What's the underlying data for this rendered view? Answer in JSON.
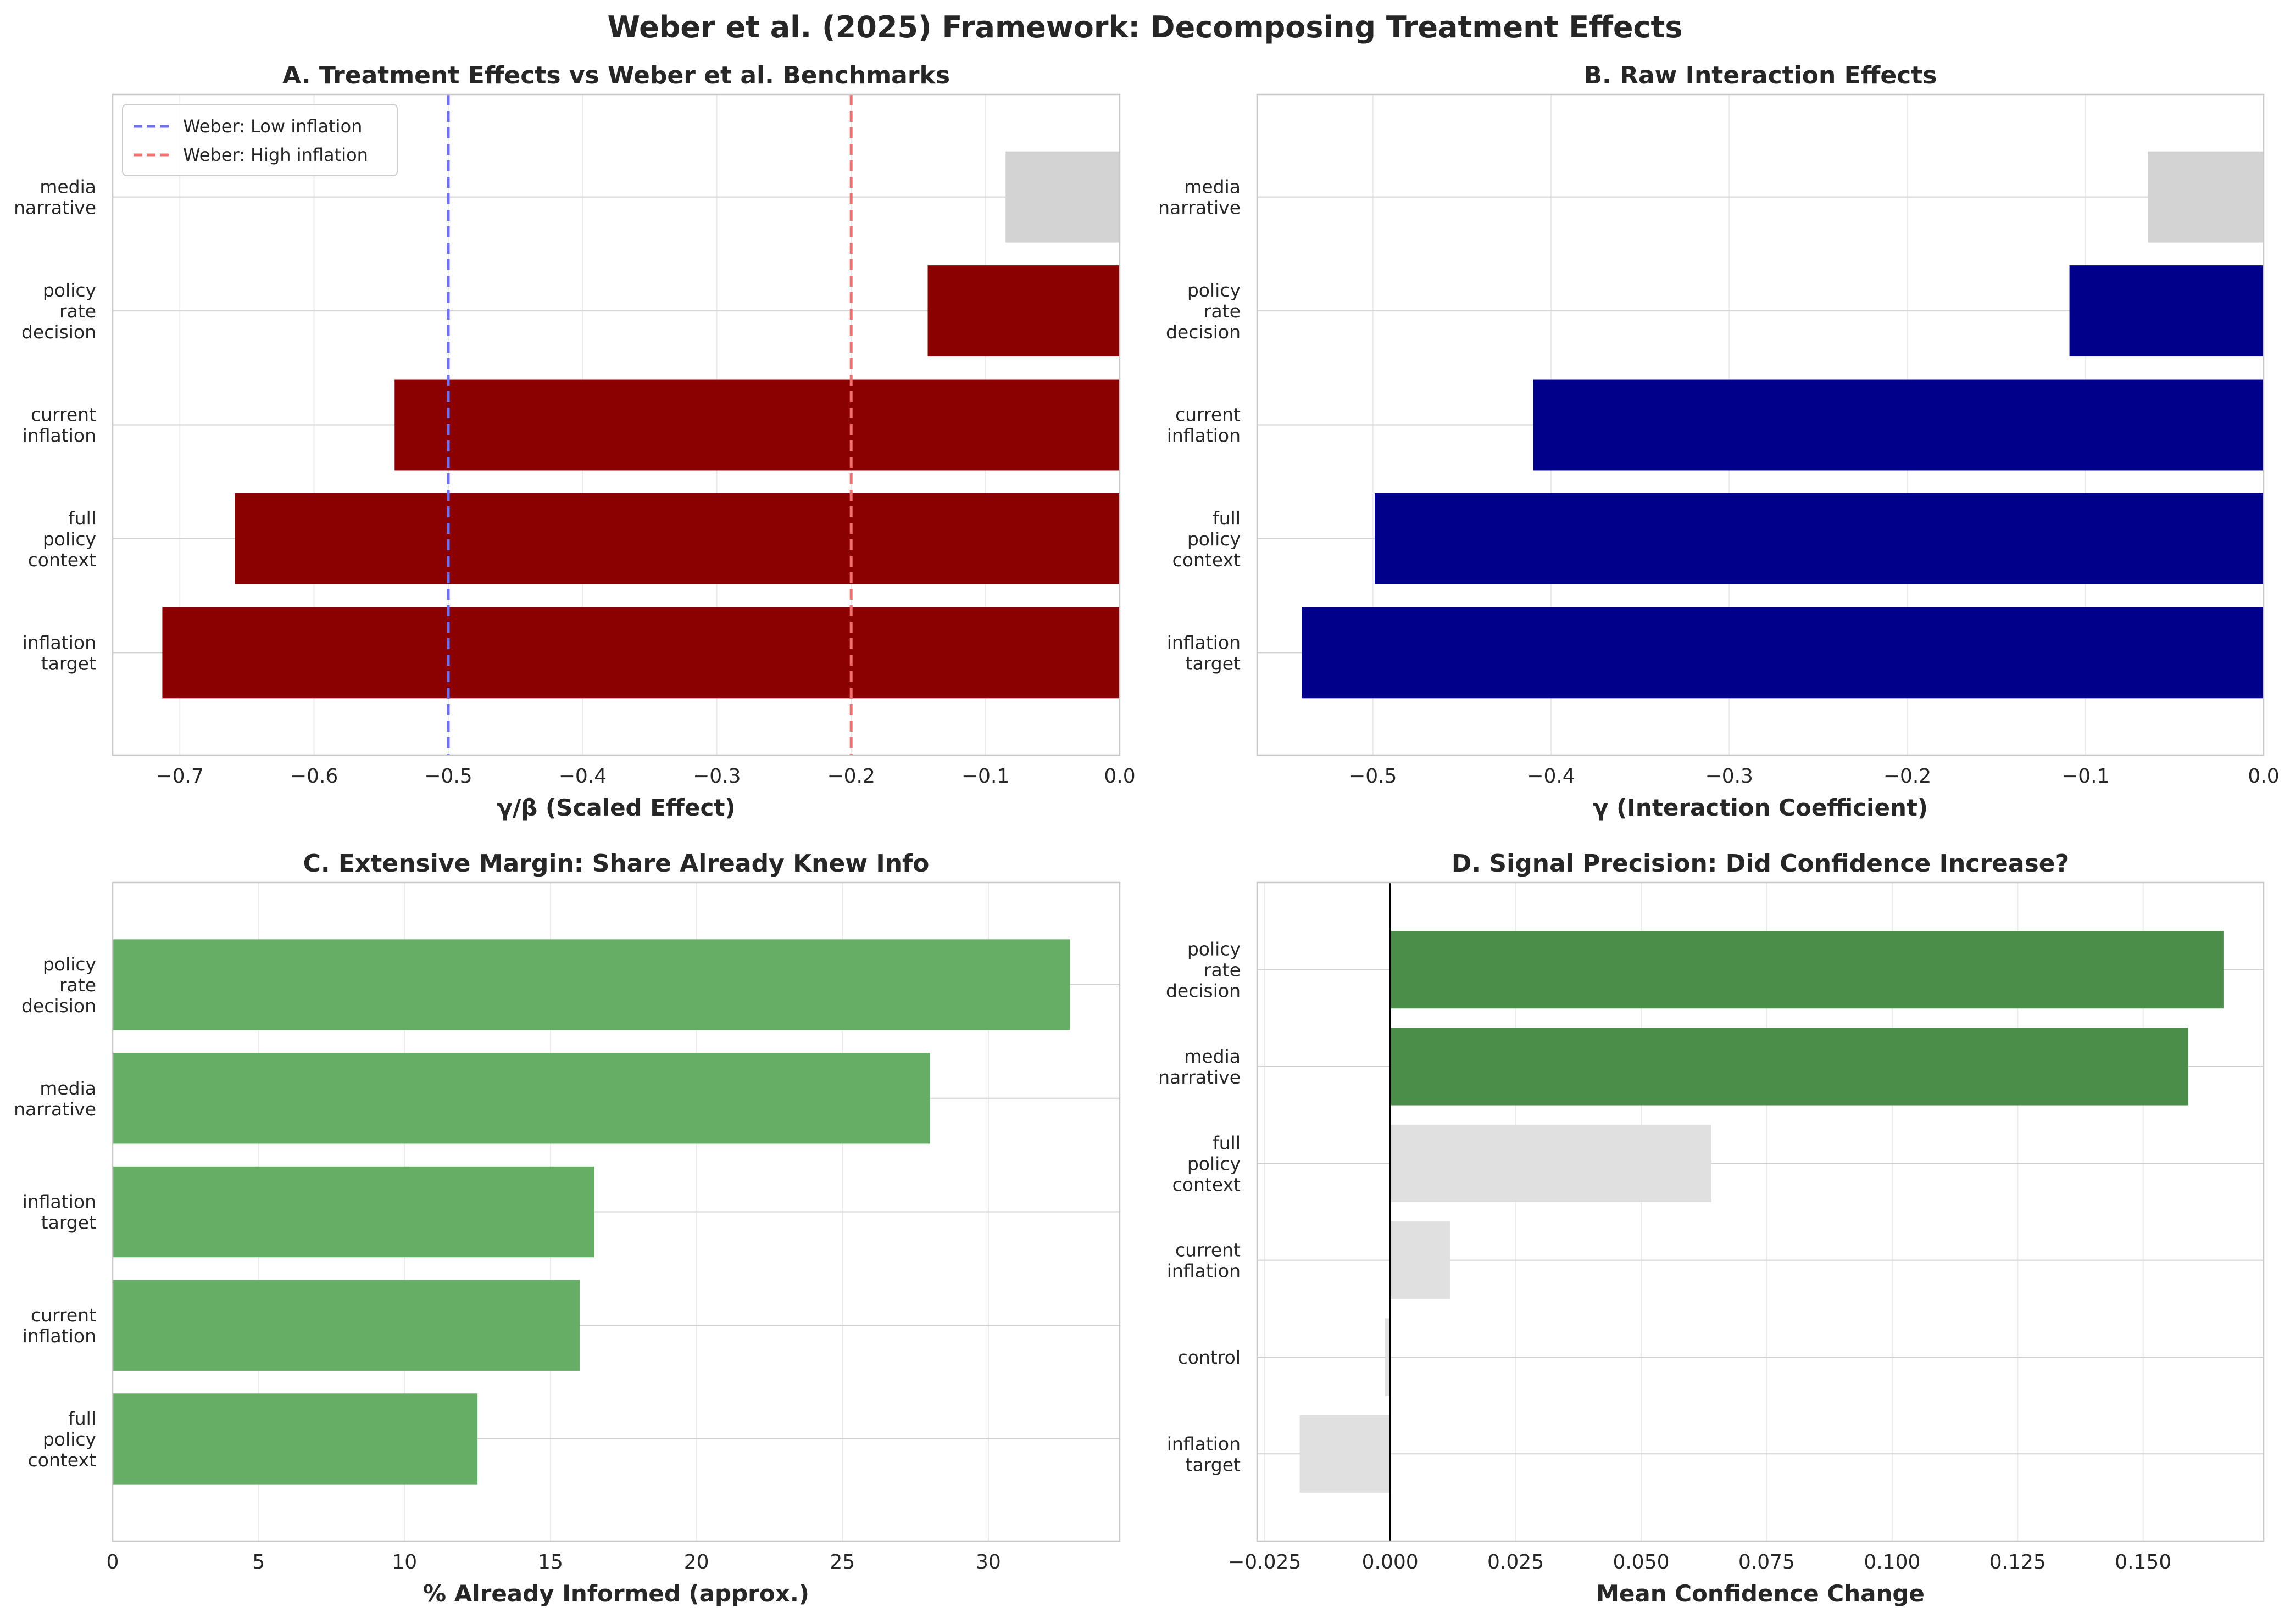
{
  "figure": {
    "title": "Weber et al. (2025) Framework: Decomposing Treatment Effects"
  },
  "chart_data": [
    {
      "id": "A",
      "type": "bar",
      "orientation": "horizontal",
      "title": "A. Treatment Effects vs Weber et al. Benchmarks",
      "xlabel": "γ/β (Scaled Effect)",
      "ylabel": "",
      "xlim": [
        -0.75,
        0.0
      ],
      "xticks": [
        -0.7,
        -0.6,
        -0.5,
        -0.4,
        -0.3,
        -0.2,
        -0.1,
        0.0
      ],
      "xtick_labels": [
        "−0.7",
        "−0.6",
        "−0.5",
        "−0.4",
        "−0.3",
        "−0.2",
        "−0.1",
        "0.0"
      ],
      "grid": true,
      "legend": "upper-left",
      "categories": [
        "inflation\ntarget",
        "full\npolicy\ncontext",
        "current\ninflation",
        "policy\nrate\ndecision",
        "media\nnarrative"
      ],
      "values": [
        -0.713,
        -0.659,
        -0.54,
        -0.143,
        -0.085
      ],
      "bar_colors": [
        "#8b0000",
        "#8b0000",
        "#8b0000",
        "#8b0000",
        "#d3d3d3"
      ],
      "reference_lines": [
        {
          "name": "Weber: Low inflation",
          "x": -0.5,
          "color": "#7070f0",
          "style": "dashed"
        },
        {
          "name": "Weber: High inflation",
          "x": -0.2,
          "color": "#f07070",
          "style": "dashed"
        }
      ]
    },
    {
      "id": "B",
      "type": "bar",
      "orientation": "horizontal",
      "title": "B. Raw Interaction Effects",
      "xlabel": "γ (Interaction Coefficient)",
      "ylabel": "",
      "xlim": [
        -0.565,
        0.0
      ],
      "xticks": [
        -0.5,
        -0.4,
        -0.3,
        -0.2,
        -0.1,
        0.0
      ],
      "xtick_labels": [
        "−0.5",
        "−0.4",
        "−0.3",
        "−0.2",
        "−0.1",
        "0.0"
      ],
      "grid": true,
      "categories": [
        "inflation\ntarget",
        "full\npolicy\ncontext",
        "current\ninflation",
        "policy\nrate\ndecision",
        "media\nnarrative"
      ],
      "values": [
        -0.54,
        -0.499,
        -0.41,
        -0.109,
        -0.065
      ],
      "bar_colors": [
        "#00008b",
        "#00008b",
        "#00008b",
        "#00008b",
        "#d3d3d3"
      ]
    },
    {
      "id": "C",
      "type": "bar",
      "orientation": "horizontal",
      "title": "C. Extensive Margin: Share Already Knew Info",
      "xlabel": "% Already Informed (approx.)",
      "ylabel": "",
      "xlim": [
        0,
        34.5
      ],
      "xticks": [
        0,
        5,
        10,
        15,
        20,
        25,
        30
      ],
      "xtick_labels": [
        "0",
        "5",
        "10",
        "15",
        "20",
        "25",
        "30"
      ],
      "grid": true,
      "categories": [
        "full\npolicy\ncontext",
        "current\ninflation",
        "inflation\ntarget",
        "media\nnarrative",
        "policy\nrate\ndecision"
      ],
      "values": [
        12.5,
        16.0,
        16.5,
        28.0,
        32.8
      ],
      "bar_colors": [
        "#66ae66",
        "#66ae66",
        "#66ae66",
        "#66ae66",
        "#66ae66"
      ]
    },
    {
      "id": "D",
      "type": "bar",
      "orientation": "horizontal",
      "title": "D. Signal Precision: Did Confidence Increase?",
      "xlabel": "Mean Confidence Change",
      "ylabel": "",
      "xlim": [
        -0.0265,
        0.174
      ],
      "xticks": [
        -0.025,
        0.0,
        0.025,
        0.05,
        0.075,
        0.1,
        0.125,
        0.15
      ],
      "xtick_labels": [
        "−0.025",
        "0.000",
        "0.025",
        "0.050",
        "0.075",
        "0.100",
        "0.125",
        "0.150"
      ],
      "grid": true,
      "zero_line": true,
      "categories": [
        "inflation\ntarget",
        "control",
        "current\ninflation",
        "full\npolicy\ncontext",
        "media\nnarrative",
        "policy\nrate\ndecision"
      ],
      "values": [
        -0.018,
        -0.001,
        0.012,
        0.064,
        0.159,
        0.166
      ],
      "bar_colors": [
        "#e0e0e0",
        "#e0e0e0",
        "#e0e0e0",
        "#e0e0e0",
        "#4a8e4a",
        "#4a8e4a"
      ]
    }
  ]
}
